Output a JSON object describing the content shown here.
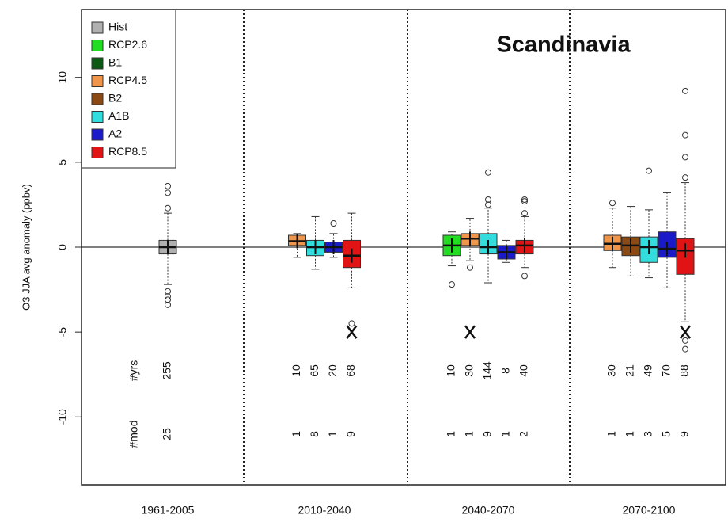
{
  "chart_data": {
    "type": "box",
    "title": "Scandinavia",
    "ylabel": "O3 JJA avg anomaly (ppbv)",
    "categories": [
      "1961-2005",
      "2010-2040",
      "2040-2070",
      "2070-2100"
    ],
    "ylim": [
      -14,
      14
    ],
    "yticks": [
      -10,
      -5,
      0,
      5,
      10
    ],
    "hline": 0,
    "row_labels": [
      "#yrs",
      "#mod"
    ],
    "series": [
      {
        "name": "Hist",
        "color": "#b0b0b0"
      },
      {
        "name": "RCP2.6",
        "color": "#22dd22"
      },
      {
        "name": "B1",
        "color": "#0a5a14"
      },
      {
        "name": "RCP4.5",
        "color": "#f0964a"
      },
      {
        "name": "B2",
        "color": "#8b4a14"
      },
      {
        "name": "A1B",
        "color": "#33dddd"
      },
      {
        "name": "A2",
        "color": "#1a1ac8"
      },
      {
        "name": "RCP8.5",
        "color": "#e01414"
      }
    ],
    "groups": [
      [
        {
          "name": "Hist",
          "low": -2.2,
          "q1": -0.4,
          "median": 0,
          "q3": 0.4,
          "high": 2,
          "mean": 0,
          "outliers": [
            2.3,
            3.2,
            3.6,
            -2.6,
            -2.9,
            -3.1,
            -3.4
          ],
          "nyrs": 255,
          "nmod": 25
        }
      ],
      [
        {
          "name": "RCP4.5",
          "low": -0.6,
          "q1": 0.1,
          "median": 0.35,
          "q3": 0.7,
          "high": 0.8,
          "mean": 0.35,
          "outliers": [],
          "nyrs": 10,
          "nmod": 1
        },
        {
          "name": "A1B",
          "low": -1.3,
          "q1": -0.5,
          "median": 0,
          "q3": 0.4,
          "high": 1.8,
          "mean": 0,
          "outliers": [],
          "nyrs": 65,
          "nmod": 8
        },
        {
          "name": "A2",
          "low": -0.6,
          "q1": -0.3,
          "median": 0,
          "q3": 0.3,
          "high": 0.8,
          "mean": 0,
          "outliers": [
            1.4
          ],
          "nyrs": 20,
          "nmod": 1
        },
        {
          "name": "RCP8.5",
          "low": -2.4,
          "q1": -1.2,
          "median": -0.5,
          "q3": 0.4,
          "high": 2,
          "mean": -0.5,
          "outliers": [
            -4.5
          ],
          "x_mark": -5,
          "nyrs": 68,
          "nmod": 9
        }
      ],
      [
        {
          "name": "RCP2.6",
          "low": -1.1,
          "q1": -0.5,
          "median": 0.1,
          "q3": 0.7,
          "high": 0.9,
          "mean": 0.1,
          "outliers": [
            -2.2
          ],
          "nyrs": 10,
          "nmod": 1
        },
        {
          "name": "RCP4.5",
          "low": -0.8,
          "q1": 0.1,
          "median": 0.5,
          "q3": 0.8,
          "high": 1.7,
          "mean": 0.5,
          "outliers": [
            -1.2
          ],
          "x_mark": -5,
          "nyrs": 30,
          "nmod": 1
        },
        {
          "name": "A1B",
          "low": -2.1,
          "q1": -0.4,
          "median": 0,
          "q3": 0.8,
          "high": 2.3,
          "mean": 0,
          "outliers": [
            2.5,
            2.8,
            4.4
          ],
          "nyrs": 144,
          "nmod": 9
        },
        {
          "name": "A2",
          "low": -0.9,
          "q1": -0.7,
          "median": -0.3,
          "q3": 0.1,
          "high": 0.4,
          "mean": -0.3,
          "outliers": [],
          "nyrs": 8,
          "nmod": 1
        },
        {
          "name": "RCP8.5",
          "low": -1.2,
          "q1": -0.4,
          "median": 0.1,
          "q3": 0.4,
          "high": 1.8,
          "mean": 0.1,
          "outliers": [
            2,
            2.7,
            2.8,
            -1.7
          ],
          "nyrs": 40,
          "nmod": 2
        }
      ],
      [
        {
          "name": "RCP4.5",
          "low": -1.2,
          "q1": -0.2,
          "median": 0.2,
          "q3": 0.7,
          "high": 2.3,
          "mean": 0.2,
          "outliers": [
            2.6
          ],
          "nyrs": 30,
          "nmod": 1
        },
        {
          "name": "B2",
          "low": -1.7,
          "q1": -0.5,
          "median": 0.1,
          "q3": 0.6,
          "high": 2.4,
          "mean": 0.1,
          "outliers": [],
          "nyrs": 21,
          "nmod": 1
        },
        {
          "name": "A1B",
          "low": -1.8,
          "q1": -0.9,
          "median": 0,
          "q3": 0.6,
          "high": 2.2,
          "mean": 0,
          "outliers": [
            4.5
          ],
          "nyrs": 49,
          "nmod": 3
        },
        {
          "name": "A2",
          "low": -2.4,
          "q1": -0.6,
          "median": -0.1,
          "q3": 0.9,
          "high": 3.2,
          "mean": -0.1,
          "outliers": [],
          "nyrs": 70,
          "nmod": 5
        },
        {
          "name": "RCP8.5",
          "low": -4.4,
          "q1": -1.6,
          "median": -0.2,
          "q3": 0.5,
          "high": 3.8,
          "mean": -0.2,
          "outliers": [
            4.1,
            5.3,
            6.6,
            9.2,
            -5.5,
            -6
          ],
          "x_mark": -5,
          "nyrs": 88,
          "nmod": 9
        }
      ]
    ]
  }
}
